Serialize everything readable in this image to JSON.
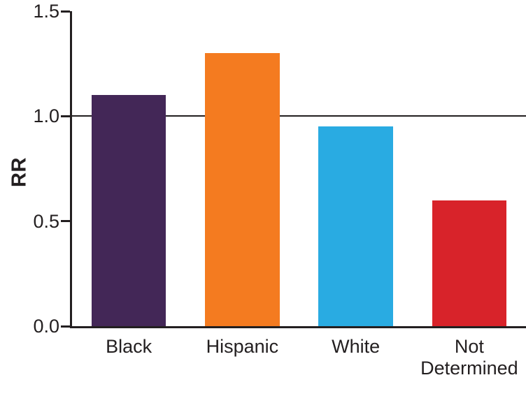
{
  "chart_data": {
    "type": "bar",
    "title": "",
    "xlabel": "",
    "ylabel": "RR",
    "categories": [
      "Black",
      "Hispanic",
      "White",
      "Not Determined"
    ],
    "values": [
      1.1,
      1.3,
      0.95,
      0.6
    ],
    "colors": [
      "#432757",
      "#F47B20",
      "#29ABE2",
      "#D8232A"
    ],
    "ylim": [
      0,
      1.5
    ],
    "yticks": [
      0.0,
      0.5,
      1.0,
      1.5
    ],
    "ytick_labels": [
      "0.0",
      "0.5",
      "1.0",
      "1.5"
    ],
    "reference_line": 1.0,
    "axis_color": "#231F20",
    "background": "#FFFFFF",
    "grid": false,
    "legend": "none"
  }
}
